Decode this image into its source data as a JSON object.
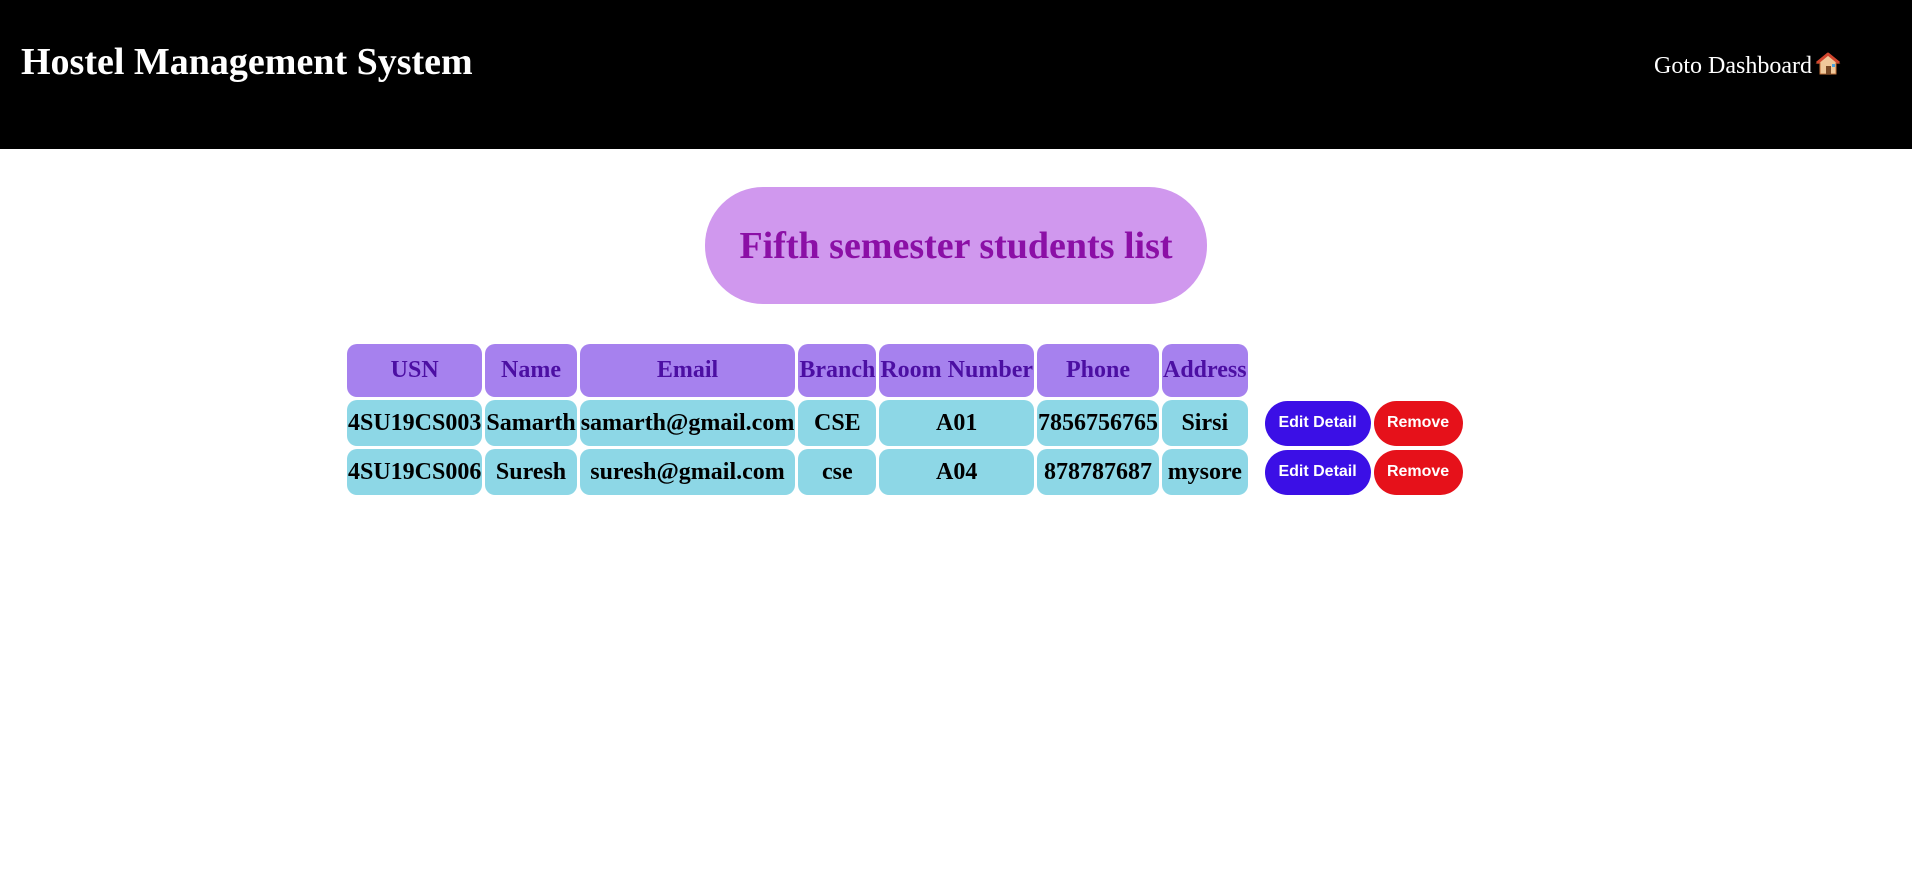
{
  "header": {
    "title": "Hostel Management System",
    "dashboard_link": "Goto Dashboard",
    "dashboard_icon": "house-icon"
  },
  "page": {
    "heading": "Fifth semester students list"
  },
  "table": {
    "columns": [
      "USN",
      "Name",
      "Email",
      "Branch",
      "Room Number",
      "Phone",
      "Address"
    ],
    "rows": [
      {
        "usn": "4SU19CS003",
        "name": "Samarth",
        "email": "samarth@gmail.com",
        "branch": "CSE",
        "room": "A01",
        "phone": "7856756765",
        "address": "Sirsi"
      },
      {
        "usn": "4SU19CS006",
        "name": "Suresh",
        "email": "suresh@gmail.com",
        "branch": "cse",
        "room": "A04",
        "phone": "878787687",
        "address": "mysore"
      }
    ],
    "edit_label": "Edit Detail",
    "remove_label": "Remove"
  },
  "colors": {
    "header_bg": "#000000",
    "heading_bg": "#d098ee",
    "heading_text": "#8b0fa6",
    "th_bg": "#a681ee",
    "th_text": "#4c0fa3",
    "td_bg": "#8dd7e6",
    "edit_button": "#3b0fe6",
    "remove_button": "#e6111a"
  }
}
